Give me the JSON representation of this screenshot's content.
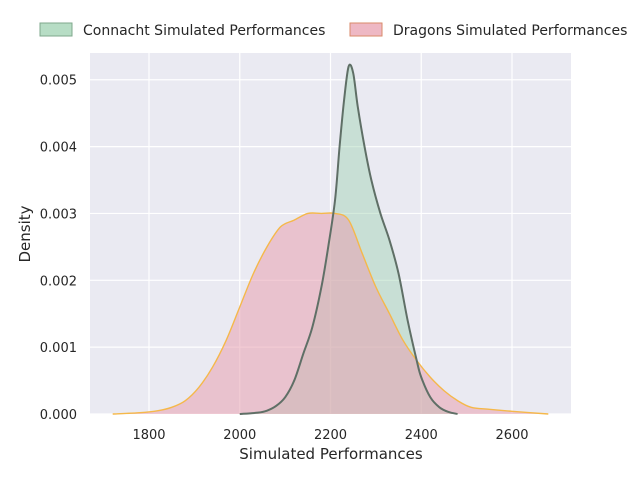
{
  "chart_data": {
    "type": "area",
    "xlabel": "Simulated Performances",
    "ylabel": "Density",
    "xlim": [
      1670,
      2730
    ],
    "ylim": [
      0,
      0.0054
    ],
    "grid": true,
    "legend_position": "top",
    "x_ticks": [
      1800,
      2000,
      2200,
      2400,
      2600
    ],
    "y_ticks": [
      0.0,
      0.001,
      0.002,
      0.003,
      0.004,
      0.005
    ],
    "x_tick_labels": [
      "1800",
      "2000",
      "2200",
      "2400",
      "2600"
    ],
    "y_tick_labels": [
      "0.000",
      "0.001",
      "0.002",
      "0.003",
      "0.004",
      "0.005"
    ],
    "series": [
      {
        "name": "Connacht Simulated Performances",
        "fill_color": "#9fd2b2",
        "line_color": "#5f6f66",
        "points": [
          [
            2000,
            0.0
          ],
          [
            2040,
            2e-05
          ],
          [
            2060,
            5e-05
          ],
          [
            2080,
            0.00012
          ],
          [
            2100,
            0.00025
          ],
          [
            2120,
            0.0005
          ],
          [
            2140,
            0.0009
          ],
          [
            2160,
            0.0013
          ],
          [
            2180,
            0.0019
          ],
          [
            2195,
            0.0025
          ],
          [
            2210,
            0.0032
          ],
          [
            2220,
            0.004
          ],
          [
            2230,
            0.0047
          ],
          [
            2240,
            0.0052
          ],
          [
            2250,
            0.0051
          ],
          [
            2260,
            0.0046
          ],
          [
            2275,
            0.004
          ],
          [
            2290,
            0.0035
          ],
          [
            2310,
            0.003
          ],
          [
            2330,
            0.0026
          ],
          [
            2350,
            0.0021
          ],
          [
            2370,
            0.0014
          ],
          [
            2390,
            0.0008
          ],
          [
            2400,
            0.00055
          ],
          [
            2420,
            0.00025
          ],
          [
            2440,
            0.0001
          ],
          [
            2460,
            3e-05
          ],
          [
            2480,
            0.0
          ]
        ]
      },
      {
        "name": "Dragons Simulated Performances",
        "fill_color": "#e8a0b0",
        "line_color": "#f5b84a",
        "points": [
          [
            1720,
            0.0
          ],
          [
            1780,
            2e-05
          ],
          [
            1820,
            5e-05
          ],
          [
            1850,
            0.0001
          ],
          [
            1880,
            0.0002
          ],
          [
            1910,
            0.0004
          ],
          [
            1940,
            0.0007
          ],
          [
            1970,
            0.0011
          ],
          [
            2000,
            0.0016
          ],
          [
            2030,
            0.0021
          ],
          [
            2060,
            0.0025
          ],
          [
            2090,
            0.0028
          ],
          [
            2120,
            0.0029
          ],
          [
            2150,
            0.003
          ],
          [
            2180,
            0.003
          ],
          [
            2210,
            0.003
          ],
          [
            2240,
            0.0029
          ],
          [
            2270,
            0.0024
          ],
          [
            2300,
            0.0019
          ],
          [
            2330,
            0.0015
          ],
          [
            2360,
            0.0011
          ],
          [
            2390,
            0.0008
          ],
          [
            2420,
            0.00055
          ],
          [
            2450,
            0.00035
          ],
          [
            2480,
            0.0002
          ],
          [
            2510,
            0.0001
          ],
          [
            2550,
            7e-05
          ],
          [
            2600,
            4e-05
          ],
          [
            2680,
            0.0
          ]
        ]
      }
    ]
  }
}
